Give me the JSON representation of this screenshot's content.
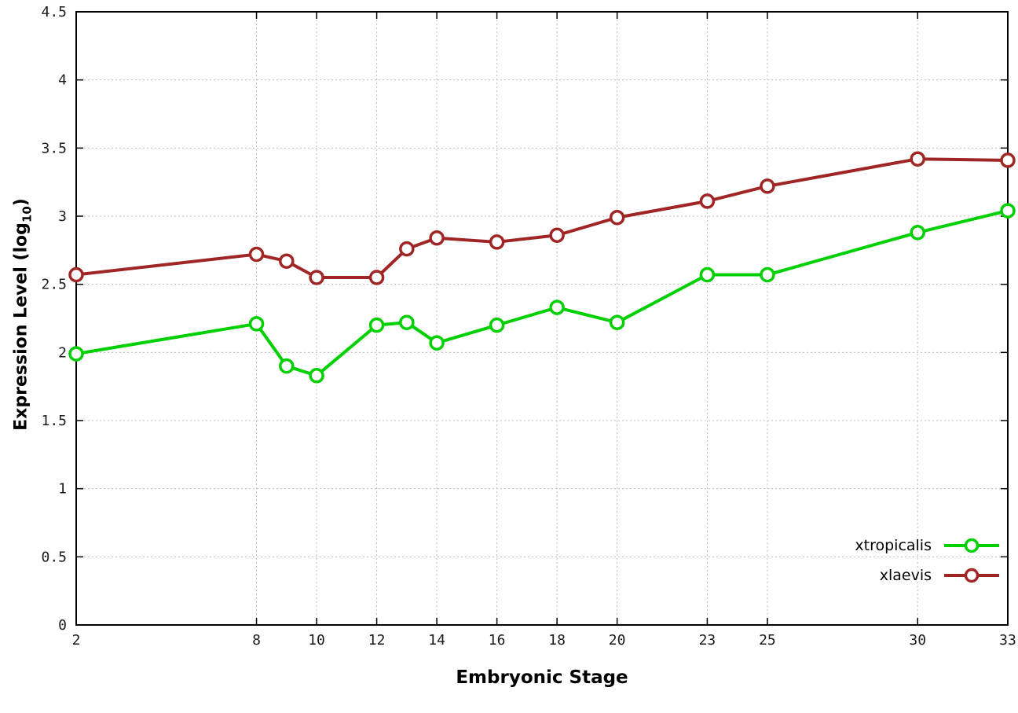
{
  "chart_data": {
    "type": "line",
    "title": "",
    "xlabel": "Embryonic Stage",
    "ylabel": "Expression Level (log10)",
    "ylabel_parts": {
      "prefix": "Expression Level (log",
      "sub": "10",
      "suffix": ")"
    },
    "xlim": [
      2,
      33
    ],
    "ylim": [
      0,
      4.5
    ],
    "x_ticks": [
      2,
      8,
      10,
      12,
      14,
      16,
      18,
      20,
      23,
      25,
      30,
      33
    ],
    "y_ticks": [
      0,
      0.5,
      1,
      1.5,
      2,
      2.5,
      3,
      3.5,
      4,
      4.5
    ],
    "grid": true,
    "legend_position": "bottom-right",
    "x": [
      2,
      8,
      9,
      10,
      12,
      13,
      14,
      16,
      18,
      20,
      23,
      25,
      30,
      33
    ],
    "series": [
      {
        "name": "xtropicalis",
        "color": "#00d000",
        "marker": "open-circle",
        "values": [
          1.99,
          2.21,
          1.9,
          1.83,
          2.2,
          2.22,
          2.07,
          2.2,
          2.33,
          2.22,
          2.57,
          2.57,
          2.88,
          3.04
        ]
      },
      {
        "name": "xlaevis",
        "color": "#a02525",
        "marker": "open-circle",
        "values": [
          2.57,
          2.72,
          2.67,
          2.55,
          2.55,
          2.76,
          2.84,
          2.81,
          2.86,
          2.99,
          3.11,
          3.22,
          3.42,
          3.41
        ]
      }
    ]
  }
}
